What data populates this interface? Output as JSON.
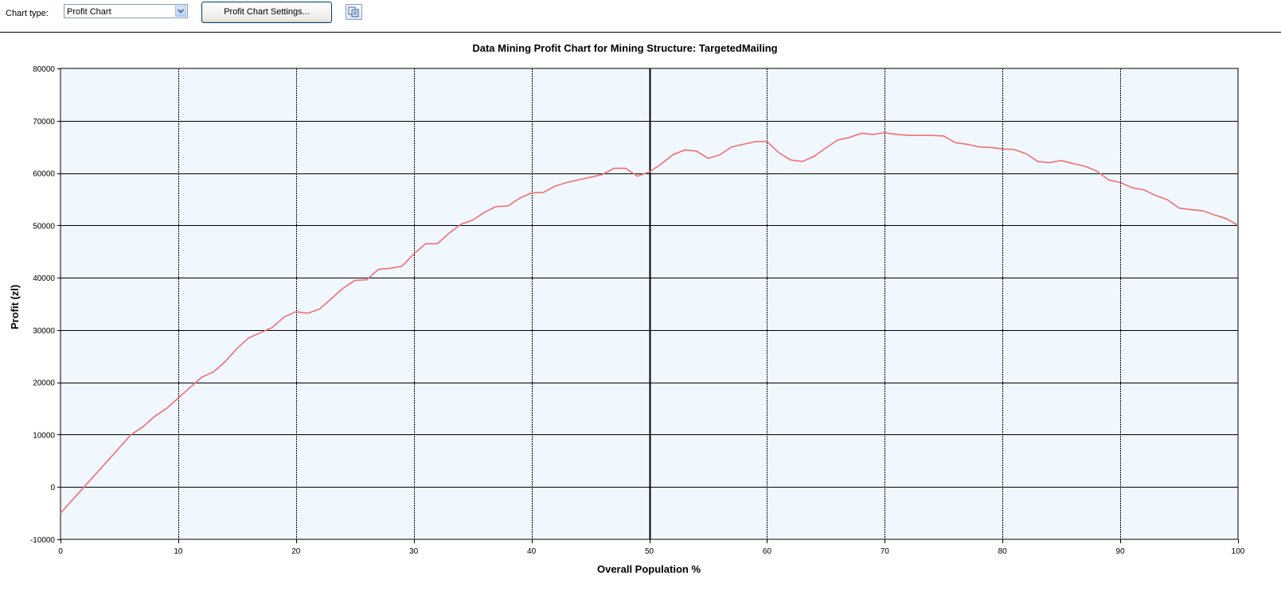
{
  "toolbar": {
    "chart_type_label": "Chart type:",
    "chart_type_value": "Profit Chart",
    "settings_label": "Profit Chart Settings...",
    "copy_icon": "copy-to-clipboard-icon"
  },
  "chart_data": {
    "type": "line",
    "title": "Data Mining Profit Chart for Mining Structure: TargetedMailing",
    "xlabel": "Overall Population %",
    "ylabel": "Profit (zl)",
    "xlim": [
      0,
      100
    ],
    "ylim": [
      -10000,
      80000
    ],
    "x_ticks": [
      "0",
      "10",
      "20",
      "30",
      "40",
      "50",
      "60",
      "70",
      "80",
      "90",
      "100"
    ],
    "y_ticks": [
      "80000",
      "70000",
      "60000",
      "50000",
      "40000",
      "30000",
      "20000",
      "10000",
      "0",
      "-10000"
    ],
    "grid": true,
    "plot_background": "#f0f7ff",
    "highlight_x": 50,
    "series": [
      {
        "color": "#f07070",
        "x": [
          0,
          1,
          2,
          3,
          4,
          5,
          6,
          7,
          8,
          9,
          10,
          11,
          12,
          13,
          14,
          15,
          16,
          17,
          18,
          19,
          20,
          21,
          22,
          23,
          24,
          25,
          26,
          27,
          28,
          29,
          30,
          31,
          32,
          33,
          34,
          35,
          36,
          37,
          38,
          39,
          40,
          41,
          42,
          43,
          44,
          45,
          46,
          47,
          48,
          49,
          50,
          51,
          52,
          53,
          54,
          55,
          56,
          57,
          58,
          59,
          60,
          61,
          62,
          63,
          64,
          65,
          66,
          67,
          68,
          69,
          70,
          71,
          72,
          73,
          74,
          75,
          76,
          77,
          78,
          79,
          80,
          81,
          82,
          83,
          84,
          85,
          86,
          87,
          88,
          89,
          90,
          91,
          92,
          93,
          94,
          95,
          96,
          97,
          98,
          99,
          100
        ],
        "y": [
          -5000,
          -2500,
          0,
          2500,
          5000,
          7500,
          10000,
          11500,
          13500,
          15000,
          17000,
          19000,
          21000,
          22000,
          24000,
          26500,
          28500,
          29500,
          30500,
          32500,
          33500,
          33200,
          34000,
          36000,
          38000,
          39500,
          39600,
          41600,
          41800,
          42200,
          44500,
          46500,
          46500,
          48500,
          50200,
          51000,
          52500,
          53600,
          53700,
          55200,
          56200,
          56300,
          57500,
          58200,
          58700,
          59200,
          59700,
          60900,
          60900,
          59400,
          60200,
          61700,
          63500,
          64400,
          64200,
          62800,
          63500,
          65000,
          65500,
          66000,
          66000,
          63900,
          62500,
          62200,
          63200,
          64800,
          66300,
          66800,
          67600,
          67400,
          67700,
          67400,
          67200,
          67200,
          67200,
          67100,
          65800,
          65500,
          65000,
          64900,
          64600,
          64500,
          63700,
          62200,
          62000,
          62400,
          61800,
          61300,
          60400,
          58700,
          58200,
          57200,
          56800,
          55700,
          54900,
          53300,
          53000,
          52800,
          52000,
          51300,
          50000
        ]
      }
    ]
  }
}
